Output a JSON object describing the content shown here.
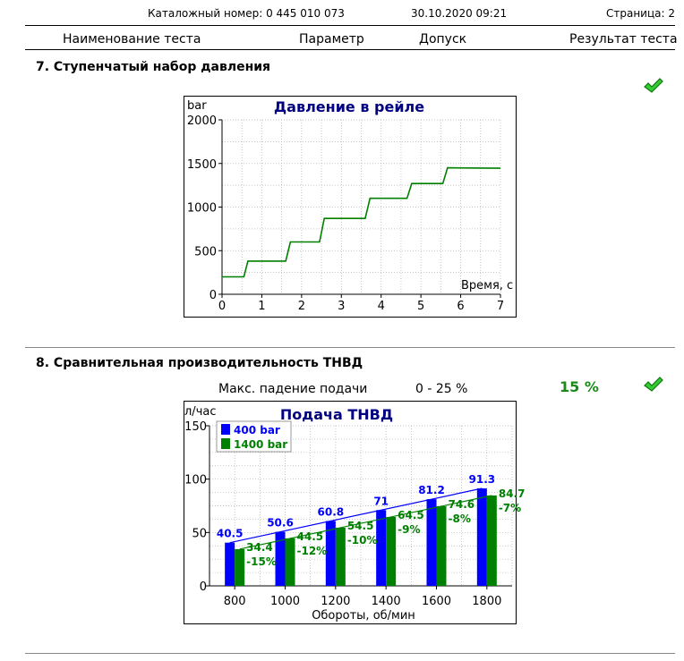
{
  "header": {
    "catalog": "Каталожный номер: 0 445 010 073",
    "datetime": "30.10.2020  09:21",
    "page": "Страница: 2"
  },
  "columns": {
    "name": "Наименование теста",
    "parameter": "Параметр",
    "tolerance": "Допуск",
    "result": "Результат теста"
  },
  "section7": {
    "title": "7. Ступенчатый набор давления",
    "status_icon": "check-mark-icon"
  },
  "section8": {
    "title": "8. Сравнительная производительность ТНВД",
    "param_label": "Макс. падение подачи",
    "tolerance": "0 - 25 %",
    "result": "15 %",
    "status_icon": "check-mark-icon"
  },
  "colors": {
    "title_blue": "#000080",
    "series_blue": "#0000ff",
    "series_green": "#008000",
    "result_green": "#1a8a1a",
    "grid": "#b0b0b0"
  },
  "chart_data": [
    {
      "type": "line",
      "title": "Давление в рейле",
      "ylabel": "bar",
      "xlabel": "Время, с",
      "xlim": [
        0,
        7
      ],
      "ylim": [
        0,
        2000
      ],
      "xticks": [
        0,
        1,
        2,
        3,
        4,
        5,
        6,
        7
      ],
      "yticks": [
        0,
        500,
        1000,
        1500,
        2000
      ],
      "grid": true,
      "series": [
        {
          "color": "#008000",
          "x": [
            0.0,
            0.55,
            0.65,
            1.6,
            1.72,
            2.45,
            2.57,
            3.6,
            3.72,
            4.65,
            4.77,
            5.55,
            5.67,
            7.0
          ],
          "y": [
            200,
            200,
            380,
            380,
            600,
            600,
            870,
            870,
            1100,
            1100,
            1270,
            1270,
            1450,
            1445
          ]
        }
      ]
    },
    {
      "type": "bar",
      "title": "Подача ТНВД",
      "ylabel": "л/час",
      "xlabel": "Обороты, об/мин",
      "ylim": [
        0,
        150
      ],
      "yticks": [
        0,
        50,
        100,
        150
      ],
      "grid": true,
      "legend": "top-left",
      "categories": [
        "800",
        "1000",
        "1200",
        "1400",
        "1600",
        "1800"
      ],
      "series": [
        {
          "name": "400 bar",
          "color": "#0000ff",
          "values": [
            40.5,
            50.6,
            60.8,
            71,
            81.2,
            91.3
          ],
          "labels": [
            "40.5",
            "50.6",
            "60.8",
            "71",
            "81.2",
            "91.3"
          ]
        },
        {
          "name": "1400 bar",
          "color": "#008000",
          "values": [
            34.4,
            44.5,
            54.5,
            64.5,
            74.6,
            84.7
          ],
          "labels": [
            "34.4",
            "44.5",
            "54.5",
            "64.5",
            "74.6",
            "84.7"
          ],
          "drops": [
            "-15%",
            "-12%",
            "-10%",
            "-9%",
            "-8%",
            "-7%"
          ]
        }
      ]
    }
  ]
}
